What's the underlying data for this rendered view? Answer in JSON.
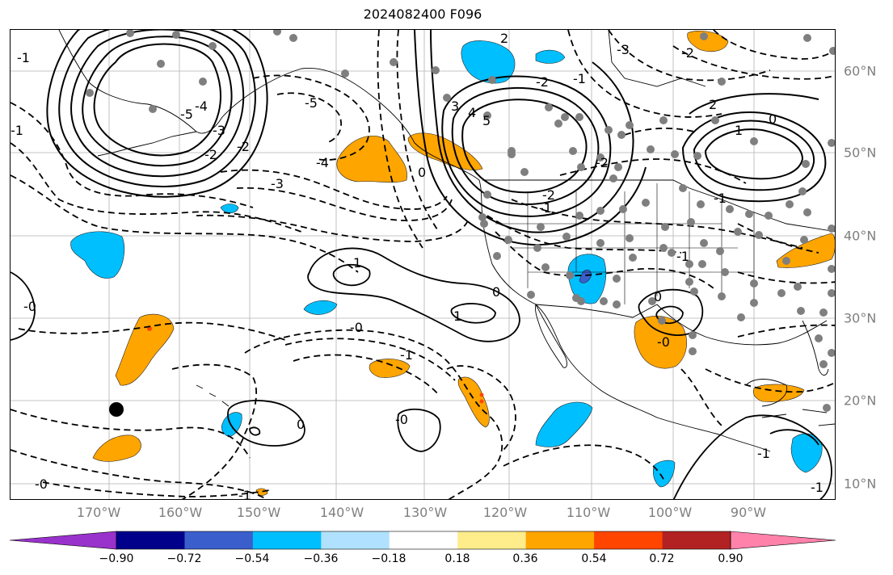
{
  "title": "2024082400 F096",
  "longitude_labels": [
    "170°W",
    "160°W",
    "150°W",
    "140°W",
    "130°W",
    "120°W",
    "110°W",
    "100°W",
    "90°W"
  ],
  "latitude_labels": [
    "60°N",
    "50°N",
    "40°N",
    "30°N",
    "20°N",
    "10°N"
  ],
  "contour_labels": [
    {
      "text": "-1"
    },
    {
      "text": "-2"
    },
    {
      "text": "-3"
    },
    {
      "text": "-4"
    },
    {
      "text": "-5"
    },
    {
      "text": "-2"
    },
    {
      "text": "-3"
    },
    {
      "text": "-4"
    },
    {
      "text": "-5"
    },
    {
      "text": "3"
    },
    {
      "text": "4"
    },
    {
      "text": "5"
    },
    {
      "text": "2"
    },
    {
      "text": "0"
    },
    {
      "text": "-1"
    },
    {
      "text": "-2"
    },
    {
      "text": "-3"
    },
    {
      "text": "-2"
    },
    {
      "text": "2"
    },
    {
      "text": "1"
    },
    {
      "text": "0"
    },
    {
      "text": "-1"
    },
    {
      "text": "1"
    },
    {
      "text": "0"
    },
    {
      "text": "1"
    },
    {
      "text": "0"
    },
    {
      "text": "-0"
    },
    {
      "text": "-1"
    },
    {
      "text": "0"
    },
    {
      "text": "-0"
    },
    {
      "text": "-1"
    },
    {
      "text": "-0"
    },
    {
      "text": "-0"
    },
    {
      "text": "-1"
    },
    {
      "text": "-1"
    },
    {
      "text": "-0"
    },
    {
      "text": "-1"
    },
    {
      "text": "-2"
    },
    {
      "text": "-2"
    },
    {
      "text": "-1"
    },
    {
      "text": "-1"
    }
  ],
  "colorbar": {
    "colors": [
      "#9932cc",
      "#00008b",
      "#3a5fcd",
      "#00bfff",
      "#b0e2ff",
      "#ffffff",
      "#ffec8b",
      "#ffa500",
      "#ff4500",
      "#b22222",
      "#ff82ab"
    ],
    "tick_labels": [
      "−0.90",
      "−0.72",
      "−0.54",
      "−0.36",
      "−0.18",
      "0.18",
      "0.36",
      "0.54",
      "0.72",
      "0.90"
    ]
  }
}
